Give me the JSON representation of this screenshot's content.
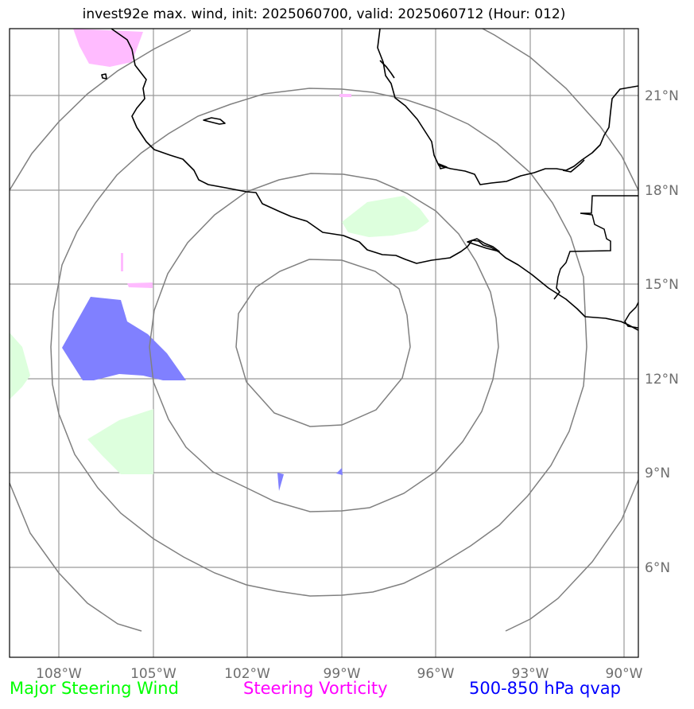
{
  "title": "invest92e max. wind, init: 2025060700, valid: 2025060712 (Hour: 012)",
  "map": {
    "lon_ticks": [
      "108°W",
      "105°W",
      "102°W",
      "99°W",
      "96°W",
      "93°W",
      "90°W"
    ],
    "lat_ticks": [
      "21°N",
      "18°N",
      "15°N",
      "12°N",
      "9°N",
      "6°N"
    ],
    "gridline_color": "#999999",
    "range_ring_color": "#808080",
    "coastline_color": "#000000"
  },
  "legend": {
    "steering_wind": {
      "label": "Major Steering Wind",
      "color": "#00ff00"
    },
    "steering_vorticity": {
      "label": "Steering Vorticity",
      "color": "#ff00ff"
    },
    "qvap": {
      "label": "500-850 hPa qvap",
      "color": "#0000ff"
    }
  },
  "fields": {
    "steering_wind_fill": "#ddffdd",
    "steering_vorticity_fill": "#ffbbff",
    "qvap_fill": "#8080ff"
  }
}
